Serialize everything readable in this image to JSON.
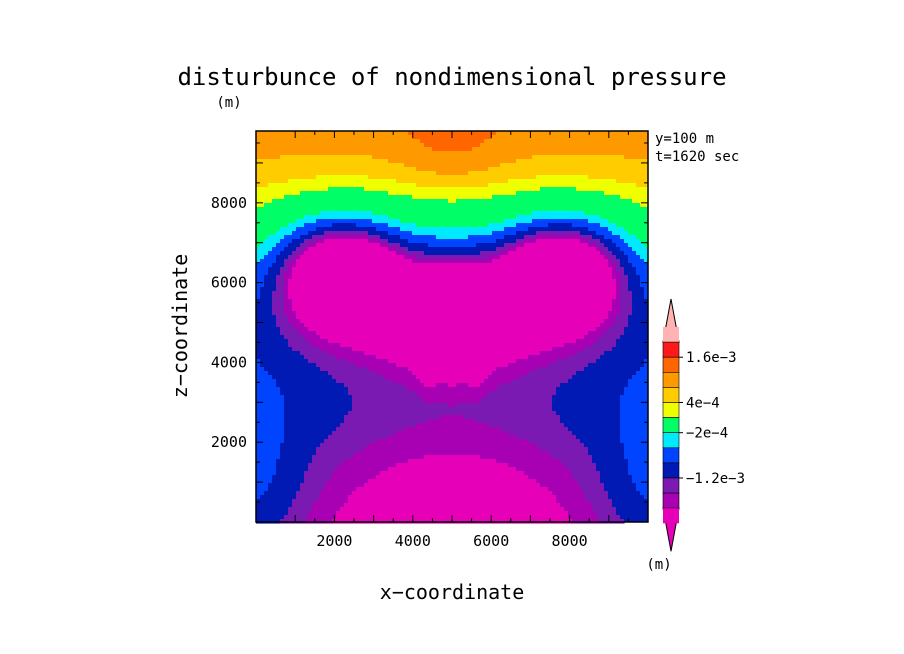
{
  "chart_data": {
    "type": "heatmap",
    "title": "disturbunce of nondimensional pressure",
    "y_unit_label": "(m)",
    "colorbar_unit_label": "(m)",
    "xlabel": "x−coordinate",
    "ylabel": "z−coordinate",
    "annotations": [
      "y=100 m",
      "t=1620 sec"
    ],
    "xlim": [
      0,
      10000
    ],
    "ylim": [
      0,
      9800
    ],
    "x_ticks": [
      {
        "value": 2000,
        "label": "2000"
      },
      {
        "value": 4000,
        "label": "4000"
      },
      {
        "value": 6000,
        "label": "6000"
      },
      {
        "value": 8000,
        "label": "8000"
      }
    ],
    "y_ticks": [
      {
        "value": 2000,
        "label": "2000"
      },
      {
        "value": 4000,
        "label": "4000"
      },
      {
        "value": 6000,
        "label": "6000"
      },
      {
        "value": 8000,
        "label": "8000"
      }
    ],
    "levels": [
      {
        "color": "#ffb3b3"
      },
      {
        "color": "#ff1a1a"
      },
      {
        "color": "#ff6600"
      },
      {
        "color": "#ff9900"
      },
      {
        "color": "#ffcc00"
      },
      {
        "color": "#f0ff00"
      },
      {
        "color": "#00ff66"
      },
      {
        "color": "#00eaff"
      },
      {
        "color": "#0044ff"
      },
      {
        "color": "#001ab3"
      },
      {
        "color": "#7a1ab3"
      },
      {
        "color": "#a800b3"
      },
      {
        "color": "#e600b8"
      }
    ],
    "colorbar_labels": [
      {
        "level_boundary": 2,
        "label": "1.6e−3"
      },
      {
        "level_boundary": 5,
        "label": "4e−4"
      },
      {
        "level_boundary": 7,
        "label": "−2e−4"
      },
      {
        "level_boundary": 10,
        "label": "−1.2e−3"
      }
    ],
    "grid": false,
    "legend": "right colorbar"
  }
}
